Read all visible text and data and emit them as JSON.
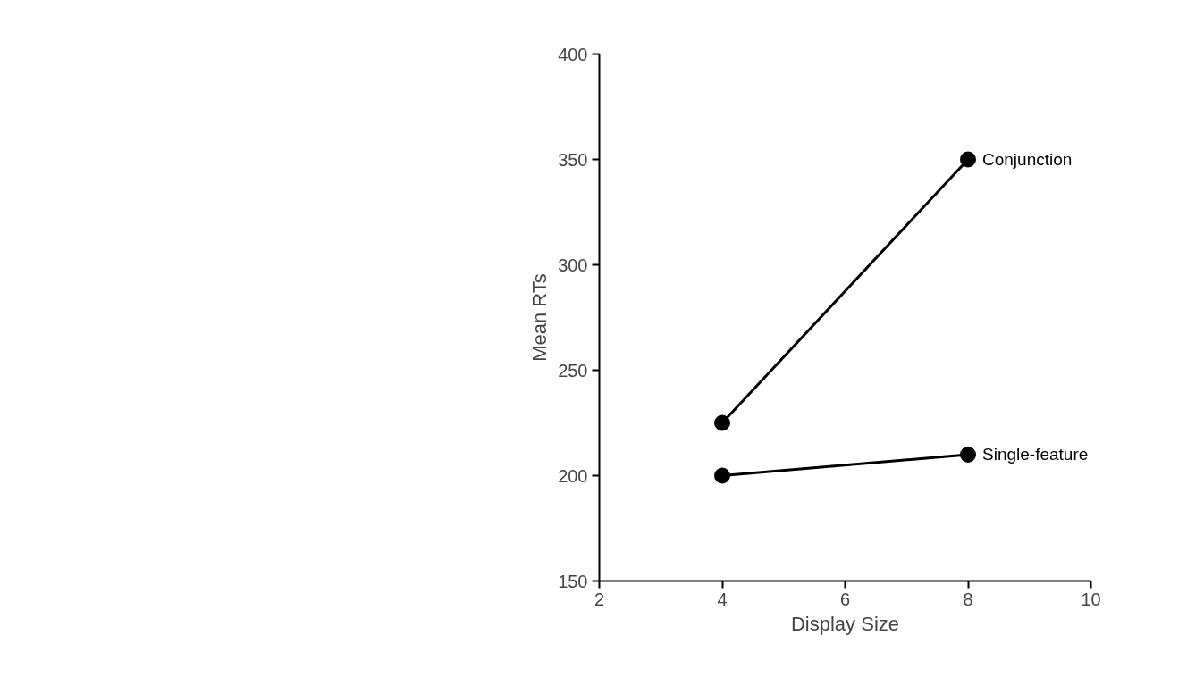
{
  "chart_data": {
    "type": "line",
    "xlabel": "Display Size",
    "ylabel": "Mean RTs",
    "x": [
      4,
      8
    ],
    "series": [
      {
        "name": "Conjunction",
        "color": "#000000",
        "values": [
          225,
          350
        ]
      },
      {
        "name": "Single-feature",
        "color": "#000000",
        "values": [
          200,
          210
        ]
      }
    ],
    "xlim": [
      2,
      10
    ],
    "xticks": [
      2,
      4,
      6,
      8,
      10
    ],
    "ylim": [
      150,
      400
    ],
    "yticks": [
      150,
      200,
      250,
      300,
      350,
      400
    ],
    "grid": false,
    "marker": "circle",
    "line_style": "solid"
  }
}
